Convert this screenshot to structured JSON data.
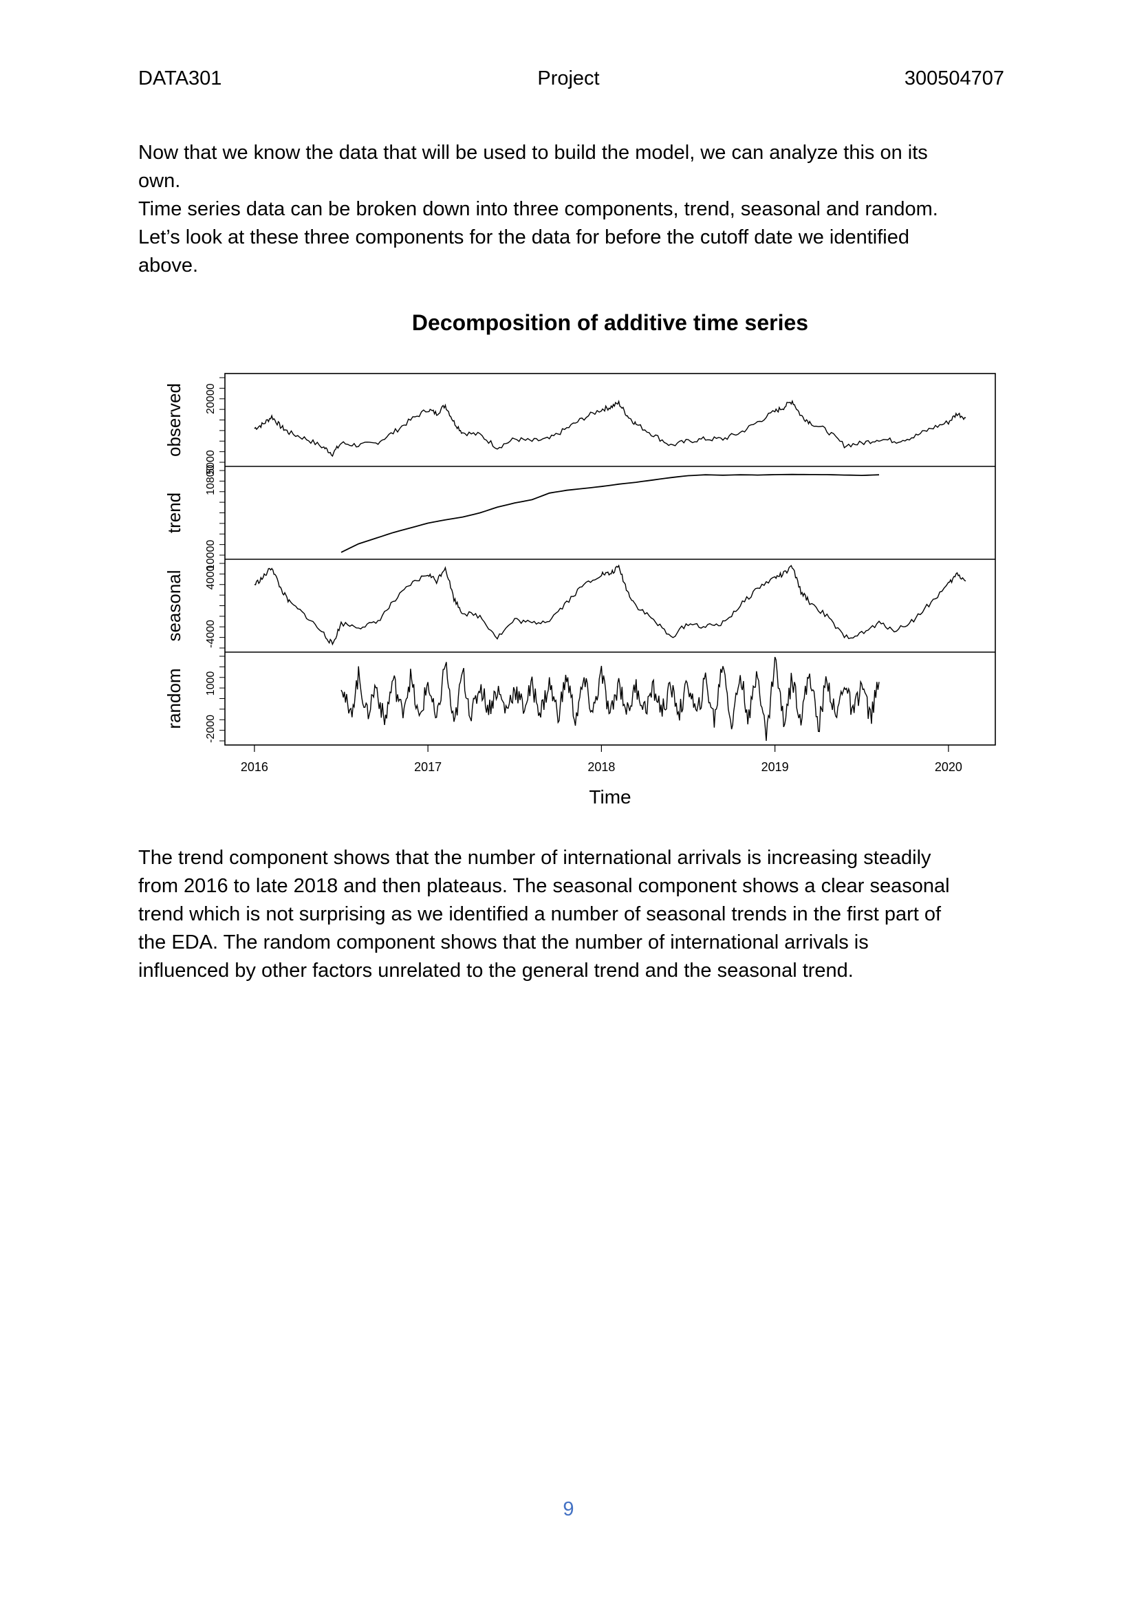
{
  "header": {
    "course": "DATA301",
    "title": "Project",
    "student_id": "300504707"
  },
  "intro": {
    "lines": [
      "Now that we know the data that will be used to build the model, we can analyze this on its",
      "own.",
      "Time series data can be broken down into three components, trend, seasonal and random.",
      "Let’s look at these three components for the data for before the cutoff date we identified",
      "above."
    ]
  },
  "chart_data": {
    "type": "line",
    "title": "Decomposition of additive time series",
    "xlabel": "Time",
    "x_ticks": [
      "2016",
      "2017",
      "2018",
      "2019",
      "2020"
    ],
    "xlim": [
      2015.83,
      2020.27
    ],
    "panels": [
      {
        "name": "observed",
        "ylabel": "observed",
        "ylim": [
          5000,
          25000
        ],
        "tick_labels": [
          "5000",
          "20000"
        ],
        "tick_values": [
          5000,
          20000
        ],
        "series": {
          "x": [
            2016.0,
            2016.05,
            2016.1,
            2016.15,
            2016.2,
            2016.3,
            2016.4,
            2016.45,
            2016.5,
            2016.6,
            2016.7,
            2016.8,
            2016.9,
            2017.0,
            2017.05,
            2017.1,
            2017.15,
            2017.2,
            2017.3,
            2017.4,
            2017.5,
            2017.6,
            2017.7,
            2017.8,
            2017.9,
            2018.0,
            2018.05,
            2018.1,
            2018.15,
            2018.2,
            2018.3,
            2018.4,
            2018.5,
            2018.6,
            2018.7,
            2018.8,
            2018.9,
            2019.0,
            2019.05,
            2019.1,
            2019.15,
            2019.2,
            2019.3,
            2019.4,
            2019.5,
            2019.6,
            2019.7,
            2019.8,
            2019.9,
            2020.0,
            2020.05,
            2020.1
          ],
          "y": [
            13000,
            14000,
            15800,
            13500,
            12000,
            10500,
            8500,
            7000,
            9500,
            9000,
            9500,
            12000,
            15000,
            17500,
            16500,
            18500,
            14500,
            12000,
            11500,
            8500,
            10500,
            10000,
            10500,
            13000,
            15500,
            17500,
            18000,
            19000,
            16000,
            14000,
            11500,
            9000,
            10000,
            10500,
            10500,
            12000,
            14500,
            17000,
            18000,
            19500,
            16000,
            14500,
            12500,
            9000,
            9500,
            10500,
            10000,
            11000,
            13000,
            14500,
            16500,
            15500
          ]
        }
      },
      {
        "name": "trend",
        "ylabel": "trend",
        "ylim": [
          10000,
          10900
        ],
        "tick_labels": [
          "10000",
          "10800"
        ],
        "tick_values": [
          10000,
          10800
        ],
        "series": {
          "x": [
            2016.5,
            2016.6,
            2016.7,
            2016.8,
            2016.9,
            2017.0,
            2017.1,
            2017.2,
            2017.3,
            2017.4,
            2017.5,
            2017.6,
            2017.7,
            2017.8,
            2017.9,
            2018.0,
            2018.1,
            2018.2,
            2018.3,
            2018.4,
            2018.5,
            2018.6,
            2018.7,
            2018.8,
            2018.9,
            2019.0,
            2019.1,
            2019.2,
            2019.3,
            2019.4,
            2019.5,
            2019.6
          ],
          "y": [
            10030,
            10120,
            10180,
            10240,
            10290,
            10340,
            10375,
            10405,
            10450,
            10510,
            10555,
            10590,
            10660,
            10690,
            10710,
            10730,
            10755,
            10775,
            10800,
            10825,
            10845,
            10855,
            10850,
            10855,
            10852,
            10856,
            10858,
            10857,
            10856,
            10852,
            10848,
            10855
          ]
        }
      },
      {
        "name": "seasonal",
        "ylabel": "seasonal",
        "ylim": [
          -6000,
          6000
        ],
        "tick_labels": [
          "-4000",
          "4000"
        ],
        "tick_values": [
          -4000,
          4000
        ],
        "series": {
          "x": [
            2016.0,
            2016.05,
            2016.1,
            2016.15,
            2016.2,
            2016.3,
            2016.4,
            2016.45,
            2016.5,
            2016.6,
            2016.7,
            2016.8,
            2016.9,
            2017.0,
            2017.05,
            2017.1,
            2017.15,
            2017.2,
            2017.3,
            2017.4,
            2017.5,
            2017.6,
            2017.7,
            2017.8,
            2017.9,
            2018.0,
            2018.05,
            2018.1,
            2018.15,
            2018.2,
            2018.3,
            2018.4,
            2018.5,
            2018.6,
            2018.7,
            2018.8,
            2018.9,
            2019.0,
            2019.05,
            2019.1,
            2019.15,
            2019.2,
            2019.3,
            2019.4,
            2019.5,
            2019.6,
            2019.7,
            2019.8,
            2019.9,
            2020.0,
            2020.05,
            2020.1
          ],
          "y": [
            3000,
            4000,
            5500,
            2500,
            500,
            -1500,
            -4000,
            -5500,
            -2500,
            -3000,
            -2500,
            500,
            3000,
            4500,
            3500,
            5500,
            1000,
            -1000,
            -1500,
            -4500,
            -2000,
            -2500,
            -2000,
            500,
            3000,
            4500,
            4500,
            5500,
            2000,
            0,
            -2000,
            -4500,
            -2500,
            -3000,
            -2500,
            0,
            2500,
            4000,
            4500,
            5500,
            2000,
            500,
            -1500,
            -4500,
            -4000,
            -2500,
            -3500,
            -2000,
            500,
            3000,
            4500,
            3500
          ]
        }
      },
      {
        "name": "random",
        "ylabel": "random",
        "ylim": [
          -2800,
          2800
        ],
        "tick_labels": [
          "-2000",
          "1000"
        ],
        "tick_values": [
          -2000,
          1000
        ],
        "series": {
          "x": [
            2016.5,
            2016.55,
            2016.6,
            2016.65,
            2016.7,
            2016.75,
            2016.8,
            2016.85,
            2016.9,
            2016.95,
            2017.0,
            2017.05,
            2017.1,
            2017.15,
            2017.2,
            2017.25,
            2017.3,
            2017.35,
            2017.4,
            2017.45,
            2017.5,
            2017.55,
            2017.6,
            2017.65,
            2017.7,
            2017.75,
            2017.8,
            2017.85,
            2017.9,
            2017.95,
            2018.0,
            2018.05,
            2018.1,
            2018.15,
            2018.2,
            2018.25,
            2018.3,
            2018.35,
            2018.4,
            2018.45,
            2018.5,
            2018.55,
            2018.6,
            2018.65,
            2018.7,
            2018.75,
            2018.8,
            2018.85,
            2018.9,
            2018.95,
            2019.0,
            2019.05,
            2019.1,
            2019.15,
            2019.2,
            2019.25,
            2019.3,
            2019.35,
            2019.4,
            2019.45,
            2019.5,
            2019.55,
            2019.6
          ],
          "y": [
            1200,
            -1300,
            1500,
            -1100,
            900,
            -1600,
            1300,
            -900,
            1400,
            -1500,
            1100,
            -1700,
            2500,
            -2000,
            1800,
            -1200,
            900,
            -700,
            600,
            -800,
            700,
            -600,
            800,
            -900,
            1000,
            -1100,
            1500,
            -1400,
            1200,
            -1000,
            1700,
            -1300,
            1100,
            -900,
            800,
            -700,
            600,
            -800,
            700,
            -900,
            1000,
            -1200,
            1300,
            -1500,
            2600,
            -1800,
            1600,
            -1400,
            2000,
            -2700,
            2700,
            -1600,
            1400,
            -1300,
            1800,
            -2000,
            1500,
            -1400,
            1200,
            -1100,
            1000,
            -1300,
            1100
          ]
        }
      }
    ]
  },
  "discussion": {
    "lines": [
      "The trend component shows that the number of international arrivals is increasing steadily",
      "from 2016 to late 2018 and then plateaus. The seasonal component shows a clear seasonal",
      "trend which is not surprising as we identified a number of seasonal trends in the first part of",
      "the EDA. The random component shows that the number of international arrivals is",
      "influenced by other factors unrelated to the general trend and the seasonal trend."
    ]
  },
  "footer": {
    "page_number": "9"
  }
}
